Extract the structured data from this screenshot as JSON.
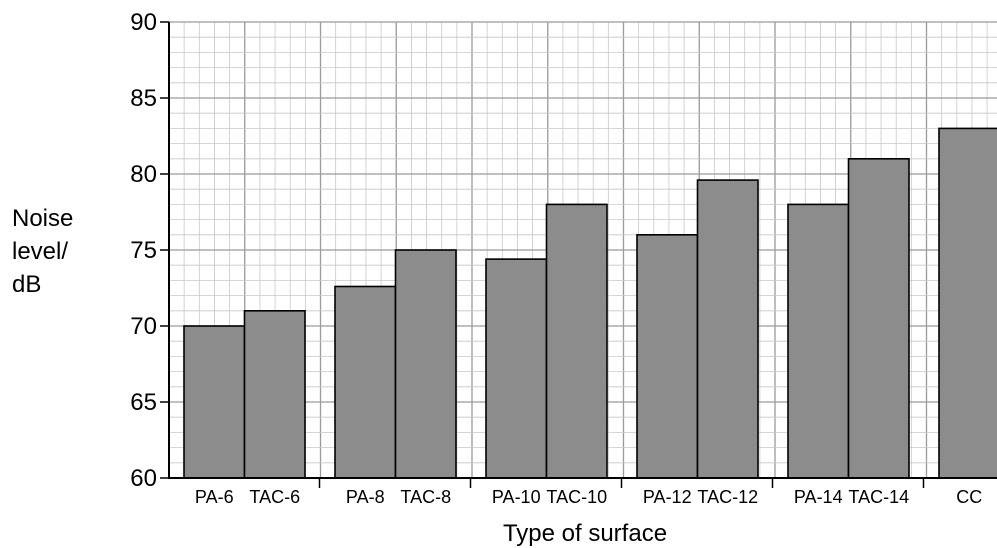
{
  "chart_data": {
    "type": "bar",
    "title": "",
    "xlabel": "Type of surface",
    "ylabel_lines": [
      "Noise",
      "level/",
      "dB"
    ],
    "categories": [
      "PA-6",
      "TAC-6",
      "PA-8",
      "TAC-8",
      "PA-10",
      "TAC-10",
      "PA-12",
      "TAC-12",
      "PA-14",
      "TAC-14",
      "CC"
    ],
    "values": [
      70,
      71,
      72.6,
      75,
      74.4,
      78,
      76,
      79.6,
      78,
      81,
      83
    ],
    "ylim": [
      60,
      90
    ],
    "yticks": [
      60,
      65,
      70,
      75,
      80,
      85,
      90
    ],
    "grid": true,
    "bar_color": "#8c8c8c",
    "grid_minor_color": "#c8c8c8",
    "grid_major_color": "#9a9a9a"
  }
}
